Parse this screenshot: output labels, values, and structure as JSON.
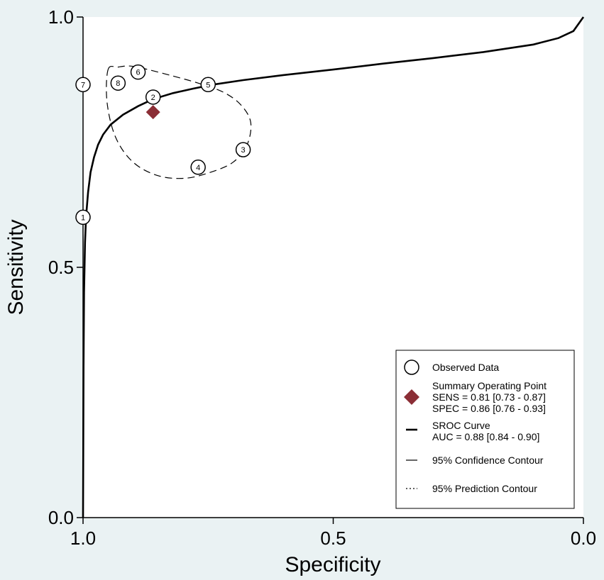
{
  "chart_data": {
    "type": "scatter",
    "xlabel": "Specificity",
    "ylabel": "Sensitivity",
    "xlim": [
      1.0,
      0.0
    ],
    "ylim": [
      0.0,
      1.0
    ],
    "x_ticks": [
      "1.0",
      "0.5",
      "0.0"
    ],
    "y_ticks": [
      "0.0",
      "0.5",
      "1.0"
    ],
    "x_reversed": true,
    "grid": false,
    "legend_position": "bottom-right",
    "observed_points": [
      {
        "label": "1",
        "specificity": 1.0,
        "sensitivity": 0.6
      },
      {
        "label": "2",
        "specificity": 0.86,
        "sensitivity": 0.84
      },
      {
        "label": "3",
        "specificity": 0.68,
        "sensitivity": 0.735
      },
      {
        "label": "4",
        "specificity": 0.77,
        "sensitivity": 0.7
      },
      {
        "label": "5",
        "specificity": 0.75,
        "sensitivity": 0.865
      },
      {
        "label": "6",
        "specificity": 0.89,
        "sensitivity": 0.89
      },
      {
        "label": "7",
        "specificity": 1.0,
        "sensitivity": 0.865
      },
      {
        "label": "8",
        "specificity": 0.93,
        "sensitivity": 0.868
      }
    ],
    "summary_point": {
      "specificity": 0.86,
      "sensitivity": 0.81,
      "color": "#8b2e36"
    },
    "sroc_curve": {
      "specificity": [
        1.0,
        0.999,
        0.998,
        0.996,
        0.994,
        0.99,
        0.985,
        0.978,
        0.97,
        0.96,
        0.945,
        0.92,
        0.89,
        0.86,
        0.82,
        0.78,
        0.74,
        0.68,
        0.6,
        0.5,
        0.4,
        0.3,
        0.2,
        0.1,
        0.05,
        0.02,
        0.0
      ],
      "sensitivity": [
        0.0,
        0.3,
        0.45,
        0.55,
        0.6,
        0.65,
        0.69,
        0.72,
        0.745,
        0.765,
        0.785,
        0.805,
        0.822,
        0.836,
        0.848,
        0.857,
        0.865,
        0.874,
        0.884,
        0.895,
        0.907,
        0.918,
        0.93,
        0.945,
        0.958,
        0.972,
        1.0
      ]
    },
    "confidence_contour": {
      "specificity": [
        0.95,
        0.93,
        0.905,
        0.87,
        0.82,
        0.77,
        0.72,
        0.685,
        0.665,
        0.672,
        0.7,
        0.745,
        0.795,
        0.85,
        0.9,
        0.935,
        0.952,
        0.95
      ],
      "sensitivity": [
        0.895,
        0.9,
        0.902,
        0.895,
        0.882,
        0.868,
        0.85,
        0.825,
        0.79,
        0.745,
        0.71,
        0.69,
        0.678,
        0.683,
        0.71,
        0.76,
        0.83,
        0.895
      ]
    },
    "legend": {
      "observed": "Observed Data",
      "summary_title": "Summary Operating Point",
      "sens": "SENS = 0.81 [0.73 - 0.87]",
      "spec": "SPEC = 0.86 [0.76 - 0.93]",
      "sroc_title": "SROC Curve",
      "auc": "AUC = 0.88 [0.84 - 0.90]",
      "confidence": "95% Confidence Contour",
      "prediction": "95% Prediction Contour"
    }
  }
}
